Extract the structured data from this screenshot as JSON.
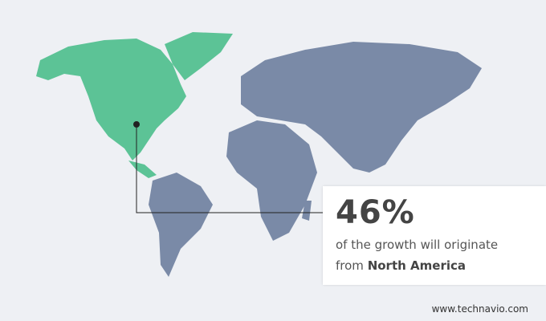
{
  "colors": {
    "highlight": "#5cc396",
    "other": "#7a8aa7",
    "background": "#eef0f4"
  },
  "callout": {
    "value": "46%",
    "line1": "of the growth will originate",
    "line2_prefix": "from",
    "region": "North America"
  },
  "footer": {
    "source": "www.technavio.com"
  }
}
